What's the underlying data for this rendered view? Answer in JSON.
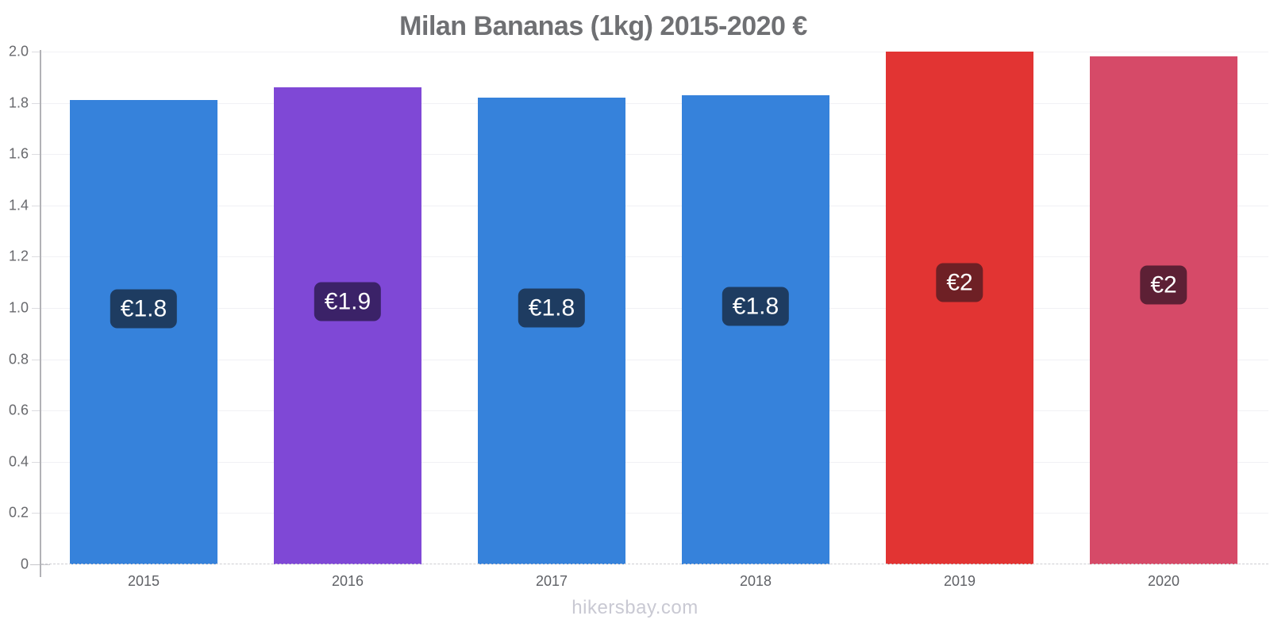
{
  "page": {
    "background": "#ffffff"
  },
  "chart_data": {
    "type": "bar",
    "title": "Milan Bananas (1kg) 2015-2020 €",
    "categories": [
      "2015",
      "2016",
      "2017",
      "2018",
      "2019",
      "2020"
    ],
    "values": [
      1.81,
      1.86,
      1.82,
      1.83,
      2.0,
      1.98
    ],
    "bar_labels": [
      "€1.8",
      "€1.9",
      "€1.8",
      "€1.8",
      "€2",
      "€2"
    ],
    "bar_colors": [
      "#3682DB",
      "#7F48D6",
      "#3682DB",
      "#3682DB",
      "#E23433",
      "#D64A68"
    ],
    "badge_colors": [
      "#1E3C61",
      "#3B2268",
      "#1E3C61",
      "#1E3C61",
      "#6E2025",
      "#5D2035"
    ],
    "xlabel": "",
    "ylabel": "",
    "ylim": [
      0,
      2.0
    ],
    "yticks": [
      0,
      0.2,
      0.4,
      0.6,
      0.8,
      1.0,
      1.2,
      1.4,
      1.6,
      1.8,
      2.0
    ],
    "ytick_labels": [
      "0",
      "0.2",
      "0.4",
      "0.6",
      "0.8",
      "1.0",
      "1.2",
      "1.4",
      "1.6",
      "1.8",
      "2.0"
    ],
    "grid": true,
    "legend": false,
    "footer": "hikersbay.com"
  }
}
